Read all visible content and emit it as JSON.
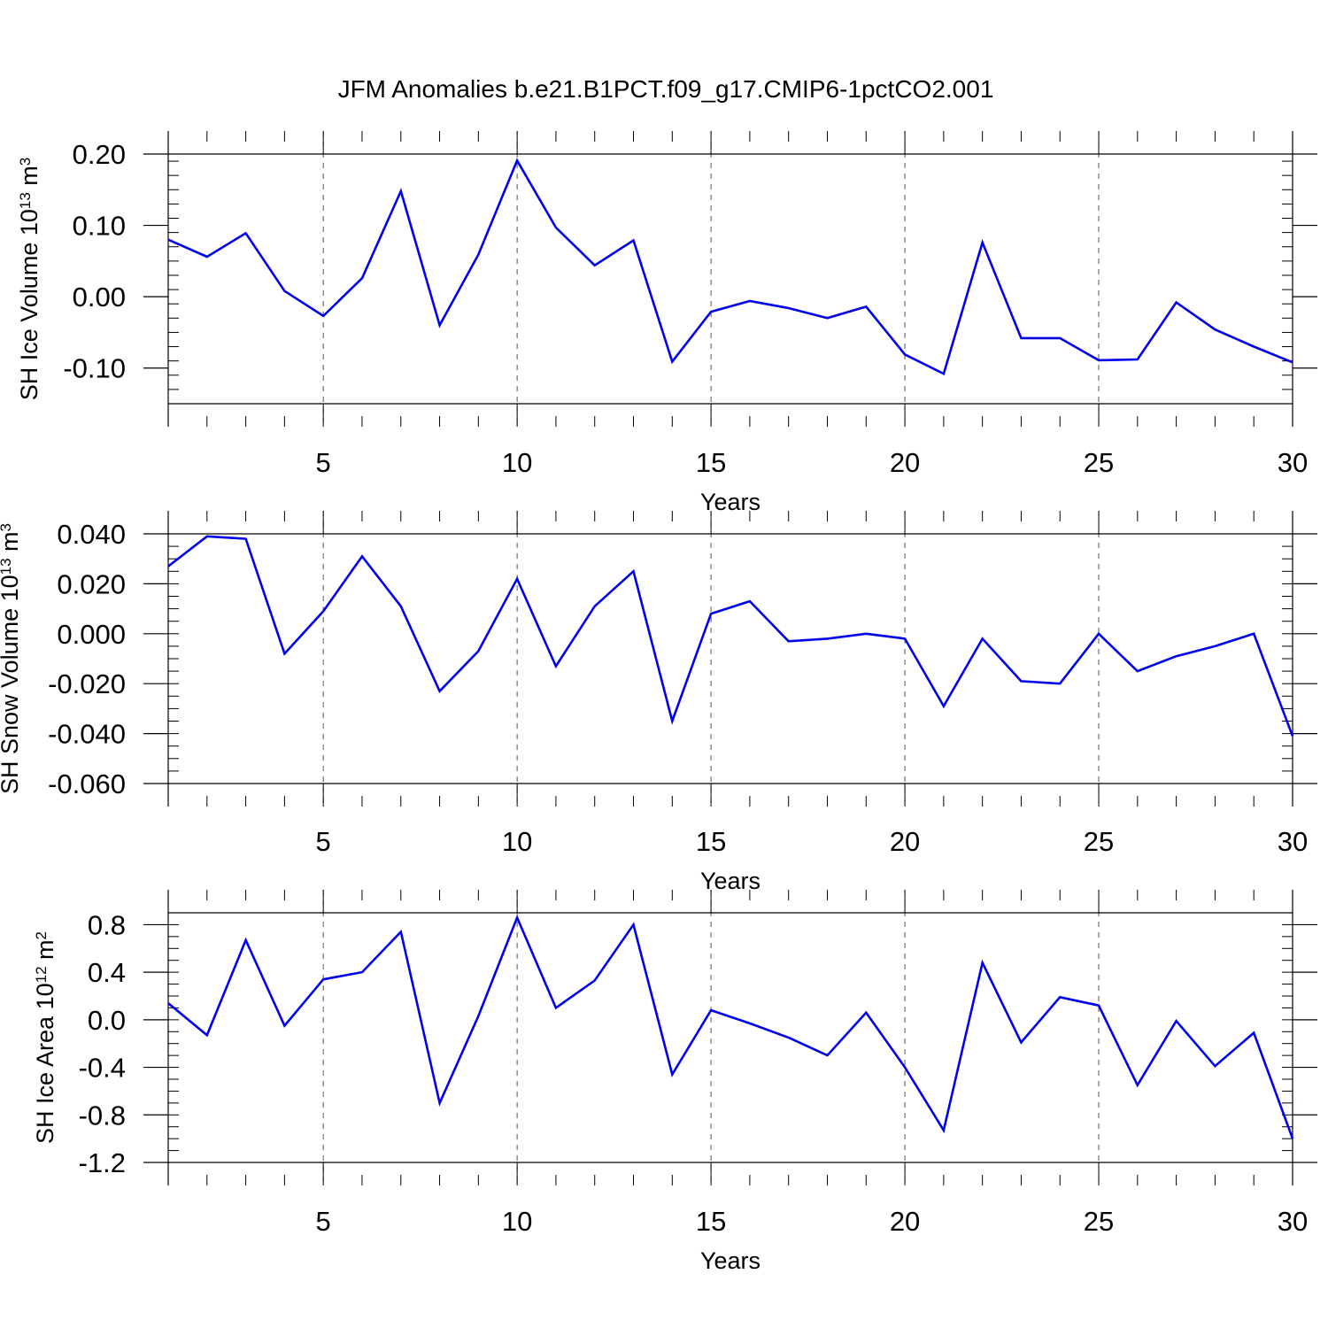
{
  "title": "JFM Anomalies b.e21.B1PCT.f09_g17.CMIP6-1pctCO2.001",
  "line_color": "#0000ee",
  "chart_data": [
    {
      "type": "line",
      "ylabel": "SH Ice Volume 10",
      "ylabel_exp": "13",
      "ylabel_unit": " m",
      "ylabel_unit_exp": "3",
      "xlabel": "Years",
      "xlim": [
        1,
        30
      ],
      "ylim": [
        -0.15,
        0.2
      ],
      "xticks": [
        5,
        10,
        15,
        20,
        25,
        30
      ],
      "xtick_labels": [
        "5",
        "10",
        "15",
        "20",
        "25",
        "30"
      ],
      "yticks": [
        0.2,
        0.1,
        0.0,
        -0.1
      ],
      "ytick_labels": [
        "0.20",
        "0.10",
        "0.00",
        "-0.10"
      ],
      "y_minor_step": 0.02,
      "x": [
        1,
        2,
        3,
        4,
        5,
        6,
        7,
        8,
        9,
        10,
        11,
        12,
        13,
        14,
        15,
        16,
        17,
        18,
        19,
        20,
        21,
        22,
        23,
        24,
        25,
        26,
        27,
        28,
        29,
        30
      ],
      "values": [
        0.08,
        0.056,
        0.089,
        0.008,
        -0.027,
        0.026,
        0.148,
        -0.04,
        0.059,
        0.191,
        0.097,
        0.044,
        0.079,
        -0.091,
        -0.021,
        -0.006,
        -0.016,
        -0.03,
        -0.014,
        -0.081,
        -0.108,
        0.076,
        -0.058,
        -0.058,
        -0.089,
        -0.088,
        -0.008,
        -0.046,
        -0.07,
        -0.092
      ]
    },
    {
      "type": "line",
      "ylabel": "SH Snow Volume 10",
      "ylabel_exp": "13",
      "ylabel_unit": " m",
      "ylabel_unit_exp": "3",
      "xlabel": "Years",
      "xlim": [
        1,
        30
      ],
      "ylim": [
        -0.06,
        0.04
      ],
      "xticks": [
        5,
        10,
        15,
        20,
        25,
        30
      ],
      "xtick_labels": [
        "5",
        "10",
        "15",
        "20",
        "25",
        "30"
      ],
      "yticks": [
        0.04,
        0.02,
        0.0,
        -0.02,
        -0.04,
        -0.06
      ],
      "ytick_labels": [
        "0.040",
        "0.020",
        "0.000",
        "-0.020",
        "-0.040",
        "-0.060"
      ],
      "y_minor_step": 0.005,
      "x": [
        1,
        2,
        3,
        4,
        5,
        6,
        7,
        8,
        9,
        10,
        11,
        12,
        13,
        14,
        15,
        16,
        17,
        18,
        19,
        20,
        21,
        22,
        23,
        24,
        25,
        26,
        27,
        28,
        29,
        30
      ],
      "values": [
        0.027,
        0.039,
        0.038,
        -0.008,
        0.009,
        0.031,
        0.011,
        -0.023,
        -0.007,
        0.022,
        -0.013,
        0.011,
        0.025,
        -0.035,
        0.008,
        0.013,
        -0.003,
        -0.002,
        0.0,
        -0.002,
        -0.029,
        -0.002,
        -0.019,
        -0.02,
        0.0,
        -0.015,
        -0.009,
        -0.005,
        0.0,
        -0.041
      ]
    },
    {
      "type": "line",
      "ylabel": "SH Ice Area 10",
      "ylabel_exp": "12",
      "ylabel_unit": " m",
      "ylabel_unit_exp": "2",
      "xlabel": "Years",
      "xlim": [
        1,
        30
      ],
      "ylim": [
        -1.2,
        0.9
      ],
      "xticks": [
        5,
        10,
        15,
        20,
        25,
        30
      ],
      "xtick_labels": [
        "5",
        "10",
        "15",
        "20",
        "25",
        "30"
      ],
      "yticks": [
        0.8,
        0.4,
        0.0,
        -0.4,
        -0.8,
        -1.2
      ],
      "ytick_labels": [
        "0.8",
        "0.4",
        "0.0",
        "-0.4",
        "-0.8",
        "-1.2"
      ],
      "y_minor_step": 0.1,
      "x": [
        1,
        2,
        3,
        4,
        5,
        6,
        7,
        8,
        9,
        10,
        11,
        12,
        13,
        14,
        15,
        16,
        17,
        18,
        19,
        20,
        21,
        22,
        23,
        24,
        25,
        26,
        27,
        28,
        29,
        30
      ],
      "values": [
        0.14,
        -0.13,
        0.67,
        -0.05,
        0.34,
        0.4,
        0.74,
        -0.7,
        0.03,
        0.86,
        0.1,
        0.33,
        0.8,
        -0.46,
        0.08,
        -0.03,
        -0.15,
        -0.3,
        0.06,
        -0.4,
        -0.93,
        0.48,
        -0.19,
        0.19,
        0.12,
        -0.55,
        -0.01,
        -0.39,
        -0.11,
        -1.0
      ]
    }
  ]
}
